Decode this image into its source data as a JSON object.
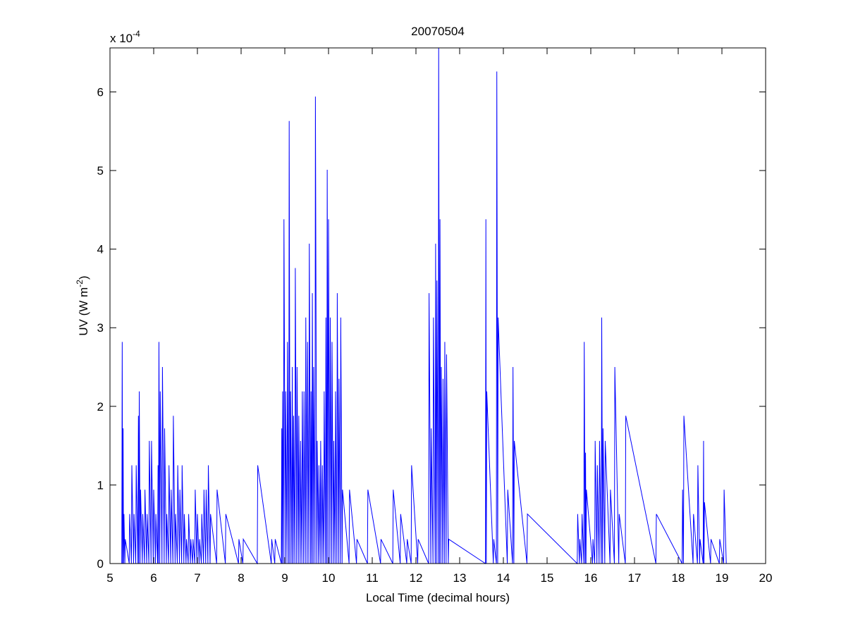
{
  "chart_data": {
    "type": "line",
    "title": "20070504",
    "xlabel": "Local Time (decimal hours)",
    "ylabel": {
      "text": "UV (W m",
      "superscript": "-2",
      "after": ")"
    },
    "y_multiplier": {
      "base": "x 10",
      "exponent": "-4"
    },
    "xlim": [
      5,
      20
    ],
    "xticks": [
      5,
      6,
      7,
      8,
      9,
      10,
      11,
      12,
      13,
      14,
      15,
      16,
      17,
      18,
      19,
      20
    ],
    "ylim": [
      0,
      6.56
    ],
    "yticks": [
      0,
      1,
      2,
      3,
      4,
      5,
      6
    ],
    "grid": false,
    "series": [
      {
        "name": "UV",
        "color": "#0000ff",
        "x": [
          5.0,
          5.27,
          5.28,
          5.29,
          5.3,
          5.31,
          5.32,
          5.34,
          5.35,
          5.44,
          5.45,
          5.49,
          5.5,
          5.54,
          5.55,
          5.59,
          5.6,
          5.64,
          5.65,
          5.66,
          5.67,
          5.69,
          5.7,
          5.74,
          5.75,
          5.79,
          5.8,
          5.84,
          5.85,
          5.89,
          5.9,
          5.94,
          5.95,
          5.99,
          6.0,
          6.04,
          6.05,
          6.09,
          6.1,
          6.11,
          6.12,
          6.14,
          6.15,
          6.19,
          6.2,
          6.24,
          6.25,
          6.29,
          6.3,
          6.34,
          6.35,
          6.39,
          6.4,
          6.44,
          6.45,
          6.49,
          6.5,
          6.54,
          6.55,
          6.59,
          6.6,
          6.64,
          6.65,
          6.69,
          6.7,
          6.74,
          6.75,
          6.79,
          6.8,
          6.84,
          6.85,
          6.89,
          6.9,
          6.94,
          6.95,
          6.99,
          7.0,
          7.04,
          7.05,
          7.09,
          7.1,
          7.14,
          7.15,
          7.19,
          7.2,
          7.24,
          7.25,
          7.29,
          7.3,
          7.44,
          7.45,
          7.64,
          7.65,
          7.94,
          7.95,
          8.04,
          8.05,
          8.37,
          8.38,
          8.69,
          8.7,
          8.77,
          8.78,
          8.92,
          8.93,
          8.94,
          8.95,
          8.97,
          8.98,
          9.01,
          9.02,
          9.05,
          9.06,
          9.09,
          9.1,
          9.12,
          9.13,
          9.16,
          9.17,
          9.19,
          9.2,
          9.23,
          9.24,
          9.27,
          9.28,
          9.31,
          9.32,
          9.35,
          9.36,
          9.39,
          9.4,
          9.43,
          9.44,
          9.47,
          9.48,
          9.51,
          9.52,
          9.55,
          9.56,
          9.59,
          9.6,
          9.62,
          9.63,
          9.65,
          9.66,
          9.69,
          9.7,
          9.73,
          9.74,
          9.77,
          9.78,
          9.81,
          9.82,
          9.85,
          9.86,
          9.89,
          9.9,
          9.93,
          9.94,
          9.96,
          9.97,
          9.99,
          10.0,
          10.03,
          10.04,
          10.07,
          10.08,
          10.11,
          10.12,
          10.15,
          10.16,
          10.19,
          10.2,
          10.23,
          10.24,
          10.27,
          10.28,
          10.31,
          10.32,
          10.47,
          10.48,
          10.64,
          10.65,
          10.89,
          10.9,
          11.19,
          11.2,
          11.47,
          11.48,
          11.64,
          11.65,
          11.79,
          11.8,
          11.89,
          11.9,
          12.04,
          12.05,
          12.29,
          12.3,
          12.34,
          12.35,
          12.39,
          12.4,
          12.44,
          12.45,
          12.47,
          12.48,
          12.51,
          12.52,
          12.54,
          12.55,
          12.57,
          12.58,
          12.61,
          12.62,
          12.65,
          12.66,
          12.69,
          12.7,
          12.74,
          12.75,
          13.59,
          13.6,
          13.61,
          13.62,
          13.77,
          13.78,
          13.84,
          13.85,
          13.87,
          13.88,
          14.09,
          14.1,
          14.21,
          14.22,
          14.24,
          14.25,
          14.54,
          14.55,
          15.69,
          15.7,
          15.74,
          15.75,
          15.79,
          15.8,
          15.84,
          15.85,
          15.87,
          15.88,
          15.89,
          15.9,
          16.04,
          16.05,
          16.09,
          16.1,
          16.14,
          16.15,
          16.19,
          16.2,
          16.24,
          16.25,
          16.27,
          16.28,
          16.32,
          16.33,
          16.44,
          16.45,
          16.54,
          16.55,
          16.64,
          16.65,
          16.79,
          16.8,
          17.49,
          17.5,
          18.09,
          18.1,
          18.12,
          18.13,
          18.34,
          18.35,
          18.44,
          18.45,
          18.49,
          18.5,
          18.57,
          18.58,
          18.59,
          18.6,
          18.74,
          18.75,
          18.94,
          18.95,
          19.04,
          19.05,
          19.1
        ],
        "values": [
          0,
          0,
          2.82,
          0,
          1.72,
          0,
          0.63,
          0,
          0.31,
          0,
          0.63,
          0,
          1.25,
          0,
          0.63,
          0,
          1.25,
          0,
          1.88,
          0,
          2.19,
          0,
          0.94,
          0,
          0.63,
          0,
          0.94,
          0,
          0.63,
          0,
          1.56,
          0,
          1.56,
          0,
          0.94,
          0,
          0.63,
          0,
          1.25,
          0,
          2.82,
          0,
          2.19,
          0,
          2.5,
          0,
          1.72,
          0,
          0.63,
          0,
          1.25,
          0,
          0.94,
          0,
          1.88,
          0,
          0.63,
          0,
          1.25,
          0,
          0.94,
          0,
          1.25,
          0,
          0.63,
          0,
          0.31,
          0,
          0.63,
          0,
          0.31,
          0,
          0.31,
          0,
          0.94,
          0,
          0.63,
          0,
          0.31,
          0,
          0.63,
          0,
          0.94,
          0,
          0.94,
          0,
          1.25,
          0,
          0.63,
          0,
          0.94,
          0,
          0.63,
          0,
          0.31,
          0,
          0.31,
          0,
          1.25,
          0,
          0.31,
          0,
          0.31,
          0,
          1.72,
          0,
          2.19,
          0,
          4.38,
          0,
          2.19,
          0,
          2.82,
          0,
          5.63,
          0,
          2.19,
          0,
          2.5,
          0,
          1.88,
          0,
          3.76,
          0,
          2.5,
          0,
          1.88,
          0,
          1.56,
          0,
          2.19,
          0,
          2.19,
          0,
          3.13,
          0,
          2.82,
          0,
          4.07,
          0,
          2.19,
          0,
          3.44,
          0,
          2.5,
          0,
          5.94,
          0,
          1.56,
          0,
          1.25,
          0,
          1.56,
          0,
          1.25,
          0,
          2.19,
          0,
          3.13,
          0,
          5.01,
          0,
          4.38,
          0,
          3.13,
          0,
          2.82,
          0,
          1.56,
          0,
          2.19,
          0,
          3.44,
          0,
          2.35,
          0,
          3.13,
          0,
          0.94,
          0,
          0.94,
          0,
          0.31,
          0,
          0.94,
          0,
          0.31,
          0,
          0.94,
          0,
          0.63,
          0,
          0.31,
          0,
          1.25,
          0,
          0.31,
          0,
          3.44,
          0,
          1.72,
          0,
          3.13,
          0,
          4.07,
          0,
          3.6,
          0,
          6.56,
          0,
          4.38,
          0,
          2.5,
          0,
          2.35,
          0,
          2.82,
          0,
          2.66,
          0,
          0.31,
          0,
          4.38,
          0,
          2.19,
          0,
          0.31,
          0,
          6.26,
          0,
          3.13,
          0,
          0.94,
          0,
          2.5,
          0,
          1.56,
          0,
          0.63,
          0,
          0.63,
          0,
          0.31,
          0,
          0.63,
          0,
          2.82,
          0,
          1.41,
          0,
          0.94,
          0,
          0.31,
          0,
          1.56,
          0,
          1.25,
          0,
          1.56,
          0,
          3.13,
          0,
          1.72,
          0,
          1.56,
          0,
          0.94,
          0,
          2.5,
          0,
          0.63,
          0,
          1.88,
          0,
          0.63,
          0,
          0.94,
          0,
          1.88,
          0,
          0.63,
          0,
          1.25,
          0,
          0.31,
          0,
          1.56,
          0,
          0.78,
          0,
          0.31,
          0,
          0.31,
          0,
          0.94,
          0
        ]
      }
    ]
  }
}
